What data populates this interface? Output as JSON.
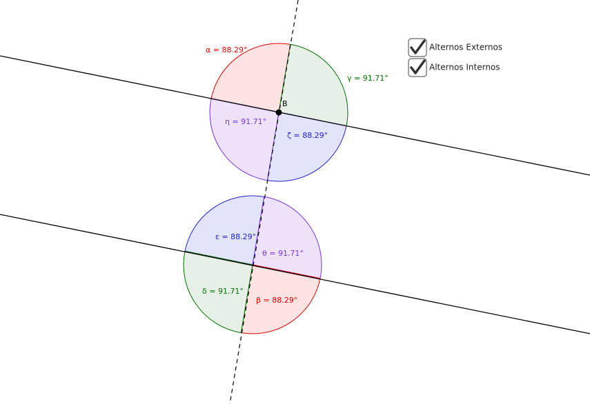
{
  "point_label": "B",
  "angles": [
    {
      "label": "α = 88.29°"
    },
    {
      "label": "γ = 91.71°"
    },
    {
      "label": "η = 91.71°"
    },
    {
      "label": "ζ = 88.29°"
    },
    {
      "label": "ε = 88.29°"
    },
    {
      "label": "θ = 91.71°"
    },
    {
      "label": "δ = 91.71°"
    },
    {
      "label": "β = 88.29°"
    }
  ],
  "checkboxes": [
    {
      "label": "Alternos Externos",
      "checked": true
    },
    {
      "label": "Alternos Internos",
      "checked": true
    }
  ]
}
